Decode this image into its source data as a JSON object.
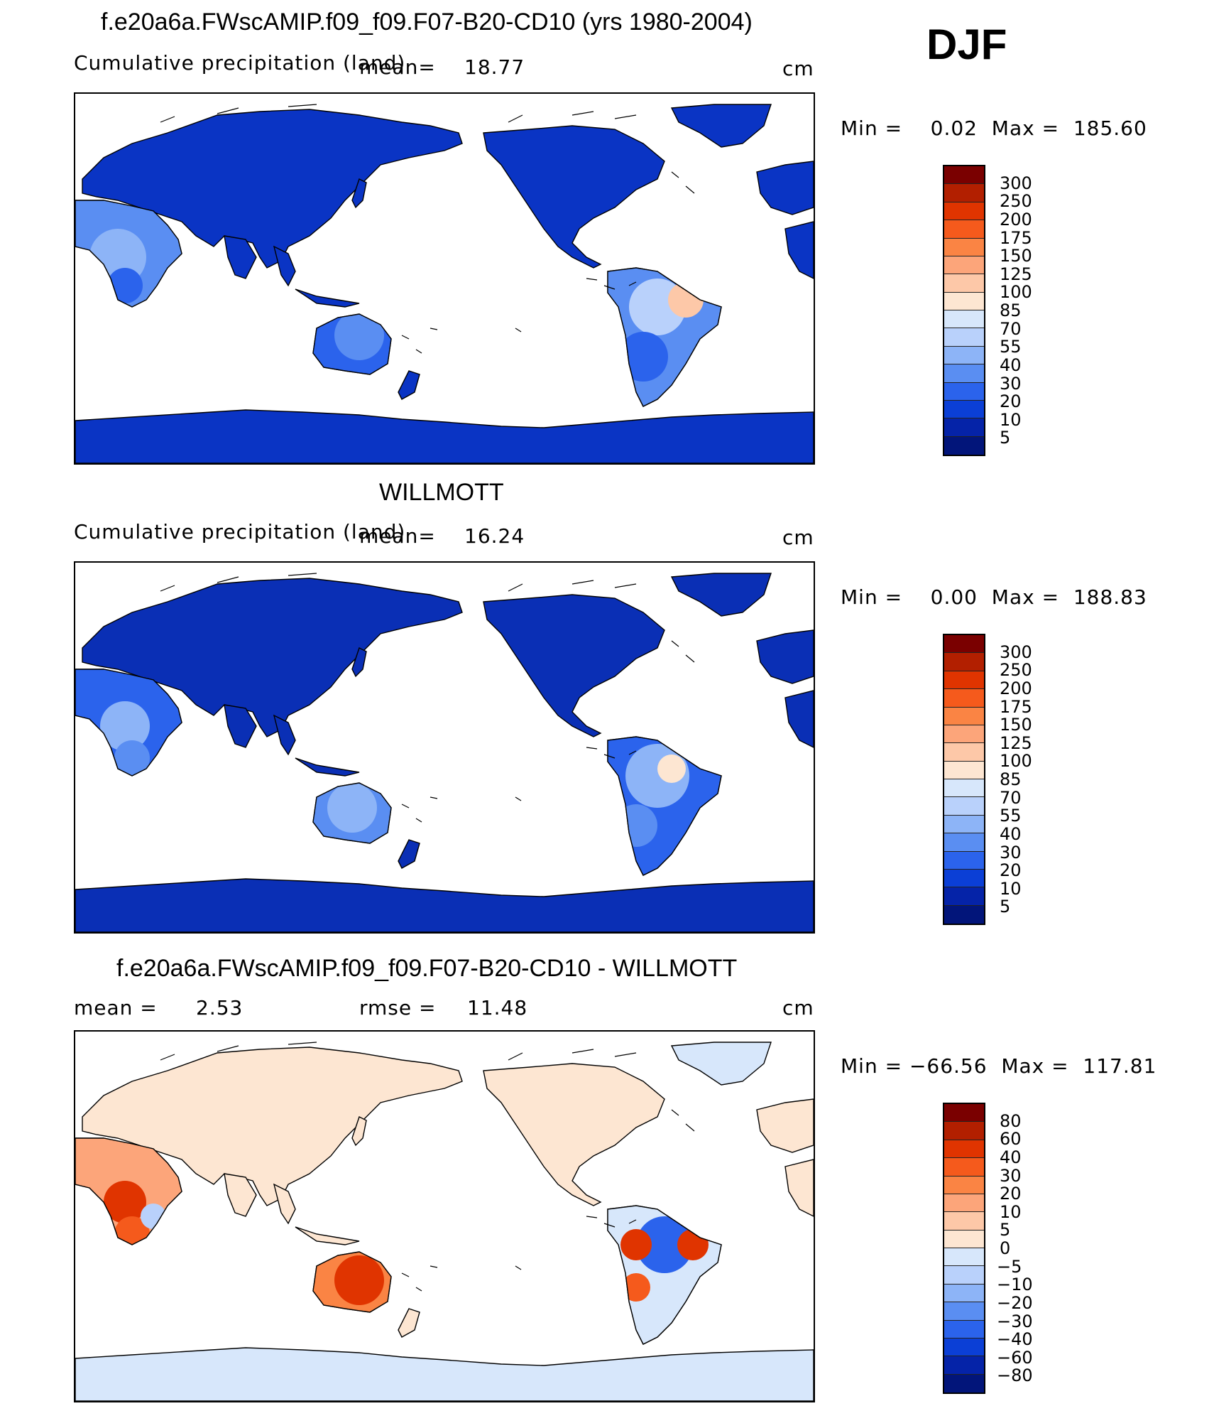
{
  "season": "DJF",
  "panels": [
    {
      "title": "f.e20a6a.FWscAMIP.f09_f09.F07-B20-CD10 (yrs 1980-2004)",
      "left_label": "Cumulative precipitation (land)",
      "mean_label": "mean=",
      "mean_value": "18.77",
      "units": "cm",
      "minmax": "Min =    0.02  Max =  185.60",
      "colorbar_labels": [
        "300",
        "250",
        "200",
        "175",
        "150",
        "125",
        "100",
        "85",
        "70",
        "55",
        "40",
        "30",
        "20",
        "10",
        "5"
      ],
      "colorbar_colors": [
        "#7a0000",
        "#b21f00",
        "#e03400",
        "#f55a1c",
        "#fa8444",
        "#fca57a",
        "#fdc8a8",
        "#fde6d2",
        "#d7e7fb",
        "#b9d1fb",
        "#8db4f7",
        "#5a8ef2",
        "#2b63ec",
        "#0b3fd6",
        "#0523a8",
        "#02157a"
      ],
      "field": "model"
    },
    {
      "title": "WILLMOTT",
      "left_label": "Cumulative precipitation (land)",
      "mean_label": "mean=",
      "mean_value": "16.24",
      "units": "cm",
      "minmax": "Min =    0.00  Max =  188.83",
      "colorbar_labels": [
        "300",
        "250",
        "200",
        "175",
        "150",
        "125",
        "100",
        "85",
        "70",
        "55",
        "40",
        "30",
        "20",
        "10",
        "5"
      ],
      "colorbar_colors": [
        "#7a0000",
        "#b21f00",
        "#e03400",
        "#f55a1c",
        "#fa8444",
        "#fca57a",
        "#fdc8a8",
        "#fde6d2",
        "#d7e7fb",
        "#b9d1fb",
        "#8db4f7",
        "#5a8ef2",
        "#2b63ec",
        "#0b3fd6",
        "#0523a8",
        "#02157a"
      ],
      "field": "obs"
    },
    {
      "title": "f.e20a6a.FWscAMIP.f09_f09.F07-B20-CD10 - WILLMOTT",
      "left_label": "mean =",
      "mean_value": "2.53",
      "rmse_label": "rmse =",
      "rmse_value": "11.48",
      "units": "cm",
      "minmax": "Min = −66.56  Max =  117.81",
      "colorbar_labels": [
        "80",
        "60",
        "40",
        "30",
        "20",
        "10",
        "5",
        "0",
        "−5",
        "−10",
        "−20",
        "−30",
        "−40",
        "−60",
        "−80"
      ],
      "colorbar_colors": [
        "#7a0000",
        "#b21f00",
        "#e03400",
        "#f55a1c",
        "#fa8444",
        "#fca57a",
        "#fdc8a8",
        "#fde6d2",
        "#d7e7fb",
        "#b9d1fb",
        "#8db4f7",
        "#5a8ef2",
        "#2b63ec",
        "#0b3fd6",
        "#0523a8",
        "#02157a"
      ],
      "field": "diff"
    }
  ]
}
